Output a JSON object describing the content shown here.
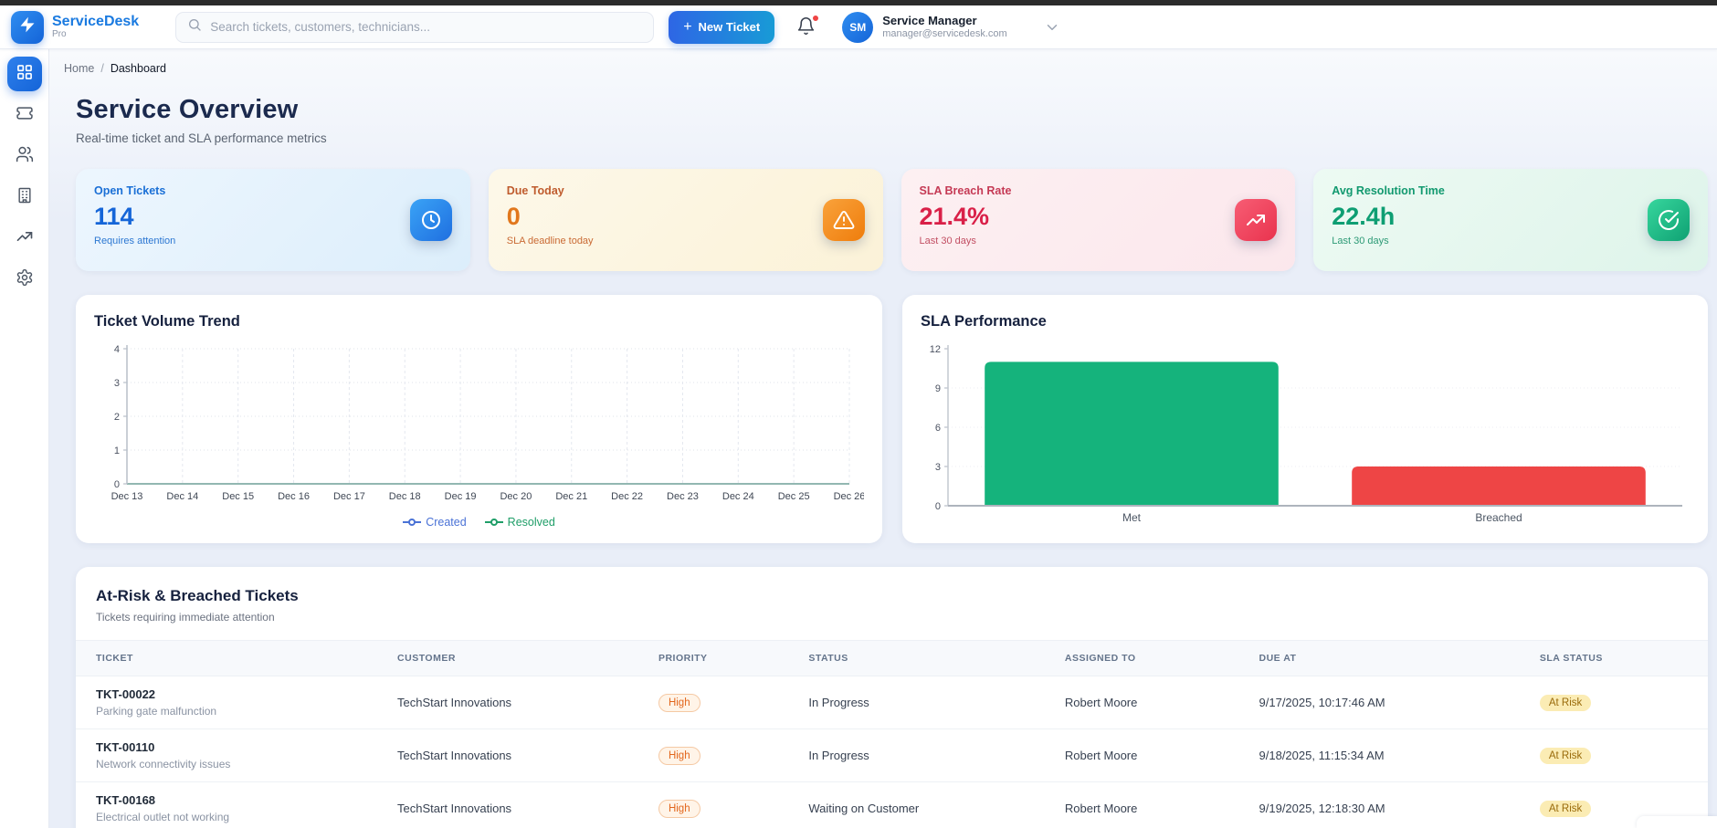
{
  "app": {
    "name": "ServiceDesk",
    "tier": "Pro"
  },
  "header": {
    "search_placeholder": "Search tickets, customers, technicians...",
    "new_ticket": {
      "plus": "+",
      "label": "New Ticket"
    },
    "notification_dot": true,
    "user": {
      "initials": "SM",
      "name": "Service Manager",
      "email": "manager@servicedesk.com"
    }
  },
  "sidebar": {
    "items": [
      {
        "id": "dashboard",
        "icon": "dashboard-icon",
        "active": true
      },
      {
        "id": "tickets",
        "icon": "ticket-icon",
        "active": false
      },
      {
        "id": "customers",
        "icon": "users-icon",
        "active": false
      },
      {
        "id": "companies",
        "icon": "building-icon",
        "active": false
      },
      {
        "id": "reports",
        "icon": "trending-up-icon",
        "active": false
      },
      {
        "id": "settings",
        "icon": "gear-icon",
        "active": false
      }
    ]
  },
  "breadcrumb": {
    "home": "Home",
    "separator": "/",
    "current": "Dashboard"
  },
  "page": {
    "title": "Service Overview",
    "subtitle": "Real-time ticket and SLA performance metrics"
  },
  "stats": [
    {
      "label": "Open Tickets",
      "value": "114",
      "caption": "Requires attention",
      "icon": "clock-icon",
      "bg_from": "#edf6fe",
      "bg_to": "#dceefb",
      "label_color": "#1a6fd6",
      "value_color": "#1565d8",
      "caption_color": "#2c77d2",
      "icon_from": "#3aa3f6",
      "icon_to": "#1f6fe0"
    },
    {
      "label": "Due Today",
      "value": "0",
      "caption": "SLA deadline today",
      "icon": "alert-triangle-icon",
      "bg_from": "#fdf8e9",
      "bg_to": "#fbf2d8",
      "label_color": "#bf5b2d",
      "value_color": "#e1771c",
      "caption_color": "#c96a34",
      "icon_from": "#f9a23b",
      "icon_to": "#ef7d0c"
    },
    {
      "label": "SLA Breach Rate",
      "value": "21.4%",
      "caption": "Last 30 days",
      "icon": "trending-up-icon",
      "bg_from": "#fdf0f2",
      "bg_to": "#fbe7ec",
      "label_color": "#c53a55",
      "value_color": "#d92048",
      "caption_color": "#c24f63",
      "icon_from": "#f75d74",
      "icon_to": "#e9334e"
    },
    {
      "label": "Avg Resolution Time",
      "value": "22.4h",
      "caption": "Last 30 days",
      "icon": "check-circle-icon",
      "bg_from": "#edfaf3",
      "bg_to": "#def4ea",
      "label_color": "#12996f",
      "value_color": "#0e9e73",
      "caption_color": "#2d9a76",
      "icon_from": "#37d69d",
      "icon_to": "#0fa173"
    }
  ],
  "chart_data": [
    {
      "type": "line",
      "title": "Ticket Volume Trend",
      "x": [
        "Dec 13",
        "Dec 14",
        "Dec 15",
        "Dec 16",
        "Dec 17",
        "Dec 18",
        "Dec 19",
        "Dec 20",
        "Dec 21",
        "Dec 22",
        "Dec 23",
        "Dec 24",
        "Dec 25",
        "Dec 26"
      ],
      "series": [
        {
          "name": "Created",
          "color": "#4a72d6",
          "values": [
            0,
            0,
            0,
            0,
            0,
            0,
            0,
            0,
            0,
            0,
            0,
            0,
            0,
            0
          ]
        },
        {
          "name": "Resolved",
          "color": "#1f9e68",
          "values": [
            0,
            0,
            0,
            0,
            0,
            0,
            0,
            0,
            0,
            0,
            0,
            0,
            0,
            0
          ]
        }
      ],
      "ylim": [
        0,
        4
      ],
      "yticks": [
        0,
        1,
        2,
        3,
        4
      ],
      "grid": true,
      "legend_position": "bottom"
    },
    {
      "type": "bar",
      "title": "SLA Performance",
      "categories": [
        "Met",
        "Breached"
      ],
      "values": [
        11,
        3
      ],
      "colors": [
        "#15b37c",
        "#ee4545"
      ],
      "ylim": [
        0,
        12
      ],
      "yticks": [
        0,
        3,
        6,
        9,
        12
      ],
      "grid": true
    }
  ],
  "table": {
    "title": "At-Risk & Breached Tickets",
    "subtitle": "Tickets requiring immediate attention",
    "columns": [
      "TICKET",
      "CUSTOMER",
      "PRIORITY",
      "STATUS",
      "ASSIGNED TO",
      "DUE AT",
      "SLA STATUS"
    ],
    "badges": {
      "priority_high": {
        "bg": "#fff4e8",
        "border": "#f5c9a4",
        "text": "#e2661c"
      },
      "at_risk": {
        "bg": "#fbecb4",
        "text": "#9a6b0b"
      }
    },
    "rows": [
      {
        "ticket_id": "TKT-00022",
        "description": "Parking gate malfunction",
        "customer": "TechStart Innovations",
        "priority": "High",
        "status": "In Progress",
        "assigned_to": "Robert Moore",
        "due_at": "9/17/2025, 10:17:46 AM",
        "sla_status": "At Risk"
      },
      {
        "ticket_id": "TKT-00110",
        "description": "Network connectivity issues",
        "customer": "TechStart Innovations",
        "priority": "High",
        "status": "In Progress",
        "assigned_to": "Robert Moore",
        "due_at": "9/18/2025, 11:15:34 AM",
        "sla_status": "At Risk"
      },
      {
        "ticket_id": "TKT-00168",
        "description": "Electrical outlet not working",
        "customer": "TechStart Innovations",
        "priority": "High",
        "status": "Waiting on Customer",
        "assigned_to": "Robert Moore",
        "due_at": "9/19/2025, 12:18:30 AM",
        "sla_status": "At Risk"
      }
    ]
  }
}
